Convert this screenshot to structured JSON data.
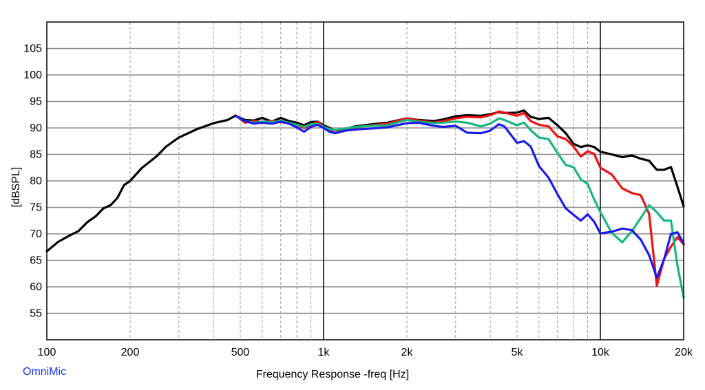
{
  "chart_data": {
    "type": "line",
    "xlabel": "Frequency Response -freq [Hz]",
    "ylabel": "[dBSPL]",
    "x_scale": "log",
    "xlim": [
      100,
      20000
    ],
    "ylim": [
      50,
      110
    ],
    "grid": true,
    "y_ticks": [
      "55",
      "60",
      "65",
      "70",
      "75",
      "80",
      "85",
      "90",
      "95",
      "100",
      "105"
    ],
    "x_tick_labels": [
      {
        "value": 100,
        "label": "100"
      },
      {
        "value": 200,
        "label": "200"
      },
      {
        "value": 500,
        "label": "500"
      },
      {
        "value": 1000,
        "label": "1k"
      },
      {
        "value": 2000,
        "label": "2k"
      },
      {
        "value": 5000,
        "label": "5k"
      },
      {
        "value": 10000,
        "label": "10k"
      },
      {
        "value": 20000,
        "label": "20k"
      }
    ],
    "series": [
      {
        "color": "#000000",
        "points": [
          [
            100,
            66.7
          ],
          [
            110,
            68.5
          ],
          [
            120,
            69.6
          ],
          [
            130,
            70.5
          ],
          [
            140,
            72.2
          ],
          [
            150,
            73.3
          ],
          [
            160,
            74.8
          ],
          [
            170,
            75.4
          ],
          [
            180,
            76.8
          ],
          [
            190,
            79.2
          ],
          [
            200,
            80.0
          ],
          [
            220,
            82.4
          ],
          [
            250,
            84.7
          ],
          [
            270,
            86.5
          ],
          [
            300,
            88.2
          ],
          [
            350,
            89.8
          ],
          [
            400,
            90.9
          ],
          [
            450,
            91.5
          ],
          [
            480,
            92.3
          ],
          [
            520,
            91.5
          ],
          [
            560,
            91.4
          ],
          [
            600,
            91.9
          ],
          [
            650,
            91.2
          ],
          [
            700,
            91.9
          ],
          [
            750,
            91.3
          ],
          [
            800,
            91.0
          ],
          [
            850,
            90.5
          ],
          [
            900,
            91.1
          ],
          [
            950,
            91.2
          ],
          [
            1000,
            90.5
          ],
          [
            1050,
            90.0
          ],
          [
            1100,
            89.5
          ],
          [
            1200,
            89.8
          ],
          [
            1300,
            90.3
          ],
          [
            1500,
            90.7
          ],
          [
            1700,
            91.0
          ],
          [
            2000,
            91.8
          ],
          [
            2200,
            91.5
          ],
          [
            2500,
            91.3
          ],
          [
            2700,
            91.6
          ],
          [
            3000,
            92.2
          ],
          [
            3300,
            92.4
          ],
          [
            3700,
            92.3
          ],
          [
            4000,
            92.6
          ],
          [
            4300,
            93.0
          ],
          [
            4500,
            92.8
          ],
          [
            5000,
            92.9
          ],
          [
            5300,
            93.3
          ],
          [
            5600,
            92.1
          ],
          [
            6000,
            91.7
          ],
          [
            6500,
            91.9
          ],
          [
            7000,
            90.5
          ],
          [
            7500,
            89.0
          ],
          [
            8000,
            87.0
          ],
          [
            8500,
            86.4
          ],
          [
            9000,
            86.7
          ],
          [
            9500,
            86.4
          ],
          [
            10000,
            85.5
          ],
          [
            11000,
            85.0
          ],
          [
            12000,
            84.5
          ],
          [
            13000,
            84.8
          ],
          [
            14000,
            84.2
          ],
          [
            15000,
            83.8
          ],
          [
            16000,
            82.1
          ],
          [
            17000,
            82.1
          ],
          [
            18000,
            82.6
          ],
          [
            19000,
            78.9
          ],
          [
            20000,
            75.2
          ]
        ]
      },
      {
        "color": "#ee1111",
        "points": [
          [
            480,
            92.4
          ],
          [
            520,
            91.0
          ],
          [
            560,
            91.3
          ],
          [
            600,
            91.1
          ],
          [
            650,
            91.3
          ],
          [
            700,
            91.1
          ],
          [
            750,
            90.9
          ],
          [
            800,
            90.5
          ],
          [
            850,
            90.0
          ],
          [
            900,
            90.6
          ],
          [
            950,
            91.1
          ],
          [
            1000,
            90.3
          ],
          [
            1050,
            89.6
          ],
          [
            1100,
            89.5
          ],
          [
            1200,
            89.9
          ],
          [
            1300,
            90.1
          ],
          [
            1500,
            90.5
          ],
          [
            1700,
            90.8
          ],
          [
            2000,
            91.8
          ],
          [
            2200,
            91.4
          ],
          [
            2500,
            91.0
          ],
          [
            2700,
            91.3
          ],
          [
            3000,
            91.8
          ],
          [
            3300,
            92.1
          ],
          [
            3700,
            92.0
          ],
          [
            4000,
            92.4
          ],
          [
            4300,
            93.1
          ],
          [
            4500,
            92.9
          ],
          [
            5000,
            92.3
          ],
          [
            5300,
            92.8
          ],
          [
            5600,
            91.3
          ],
          [
            6000,
            90.6
          ],
          [
            6500,
            90.3
          ],
          [
            7000,
            88.4
          ],
          [
            7500,
            87.9
          ],
          [
            8000,
            86.5
          ],
          [
            8500,
            84.6
          ],
          [
            9000,
            85.6
          ],
          [
            9500,
            85.1
          ],
          [
            10000,
            82.5
          ],
          [
            11000,
            81.2
          ],
          [
            12000,
            78.6
          ],
          [
            13000,
            77.7
          ],
          [
            14000,
            77.3
          ],
          [
            15000,
            73.8
          ],
          [
            16000,
            60.2
          ],
          [
            17000,
            65.3
          ],
          [
            18000,
            67.6
          ],
          [
            19000,
            69.4
          ],
          [
            20000,
            68.0
          ]
        ]
      },
      {
        "color": "#18b582",
        "points": [
          [
            480,
            92.3
          ],
          [
            520,
            91.3
          ],
          [
            560,
            91.0
          ],
          [
            600,
            91.2
          ],
          [
            650,
            91.1
          ],
          [
            700,
            91.3
          ],
          [
            750,
            91.0
          ],
          [
            800,
            90.6
          ],
          [
            850,
            90.2
          ],
          [
            900,
            90.7
          ],
          [
            950,
            90.8
          ],
          [
            1000,
            90.2
          ],
          [
            1050,
            89.8
          ],
          [
            1100,
            89.6
          ],
          [
            1200,
            89.9
          ],
          [
            1300,
            90.2
          ],
          [
            1500,
            90.4
          ],
          [
            1700,
            90.5
          ],
          [
            2000,
            91.5
          ],
          [
            2200,
            91.2
          ],
          [
            2500,
            90.9
          ],
          [
            2700,
            91.0
          ],
          [
            3000,
            91.2
          ],
          [
            3300,
            91.0
          ],
          [
            3700,
            90.3
          ],
          [
            4000,
            90.8
          ],
          [
            4300,
            91.8
          ],
          [
            4500,
            91.5
          ],
          [
            5000,
            90.5
          ],
          [
            5300,
            91.0
          ],
          [
            5600,
            89.6
          ],
          [
            6000,
            88.2
          ],
          [
            6500,
            87.9
          ],
          [
            7000,
            85.3
          ],
          [
            7500,
            83.0
          ],
          [
            8000,
            82.6
          ],
          [
            8500,
            80.3
          ],
          [
            9000,
            79.4
          ],
          [
            9500,
            76.5
          ],
          [
            10000,
            74.1
          ],
          [
            11000,
            70.2
          ],
          [
            12000,
            68.4
          ],
          [
            13000,
            70.5
          ],
          [
            14000,
            73.0
          ],
          [
            15000,
            75.4
          ],
          [
            16000,
            74.1
          ],
          [
            17000,
            72.5
          ],
          [
            18000,
            72.5
          ],
          [
            19000,
            64.0
          ],
          [
            20000,
            58.0
          ]
        ]
      },
      {
        "color": "#1a1aee",
        "points": [
          [
            480,
            92.3
          ],
          [
            520,
            91.3
          ],
          [
            560,
            90.8
          ],
          [
            600,
            91.0
          ],
          [
            650,
            90.8
          ],
          [
            700,
            91.2
          ],
          [
            750,
            90.8
          ],
          [
            800,
            90.1
          ],
          [
            850,
            89.3
          ],
          [
            900,
            90.2
          ],
          [
            950,
            90.6
          ],
          [
            1000,
            90.0
          ],
          [
            1050,
            89.3
          ],
          [
            1100,
            89.0
          ],
          [
            1200,
            89.5
          ],
          [
            1300,
            89.7
          ],
          [
            1500,
            89.9
          ],
          [
            1700,
            90.1
          ],
          [
            2000,
            90.9
          ],
          [
            2200,
            91.0
          ],
          [
            2500,
            90.4
          ],
          [
            2700,
            90.2
          ],
          [
            3000,
            90.4
          ],
          [
            3300,
            89.1
          ],
          [
            3700,
            89.0
          ],
          [
            4000,
            89.5
          ],
          [
            4300,
            90.7
          ],
          [
            4500,
            90.3
          ],
          [
            5000,
            87.2
          ],
          [
            5300,
            87.5
          ],
          [
            5600,
            86.5
          ],
          [
            6000,
            82.8
          ],
          [
            6500,
            80.6
          ],
          [
            7000,
            77.5
          ],
          [
            7500,
            74.8
          ],
          [
            8000,
            73.6
          ],
          [
            8500,
            72.5
          ],
          [
            9000,
            73.7
          ],
          [
            9500,
            72.3
          ],
          [
            10000,
            70.1
          ],
          [
            11000,
            70.4
          ],
          [
            12000,
            71.0
          ],
          [
            13000,
            70.7
          ],
          [
            14000,
            68.9
          ],
          [
            15000,
            66.0
          ],
          [
            16000,
            61.7
          ],
          [
            17000,
            65.2
          ],
          [
            18000,
            70.0
          ],
          [
            19000,
            70.3
          ],
          [
            20000,
            68.2
          ]
        ]
      }
    ]
  },
  "footer": {
    "brand": "OmniMic"
  }
}
